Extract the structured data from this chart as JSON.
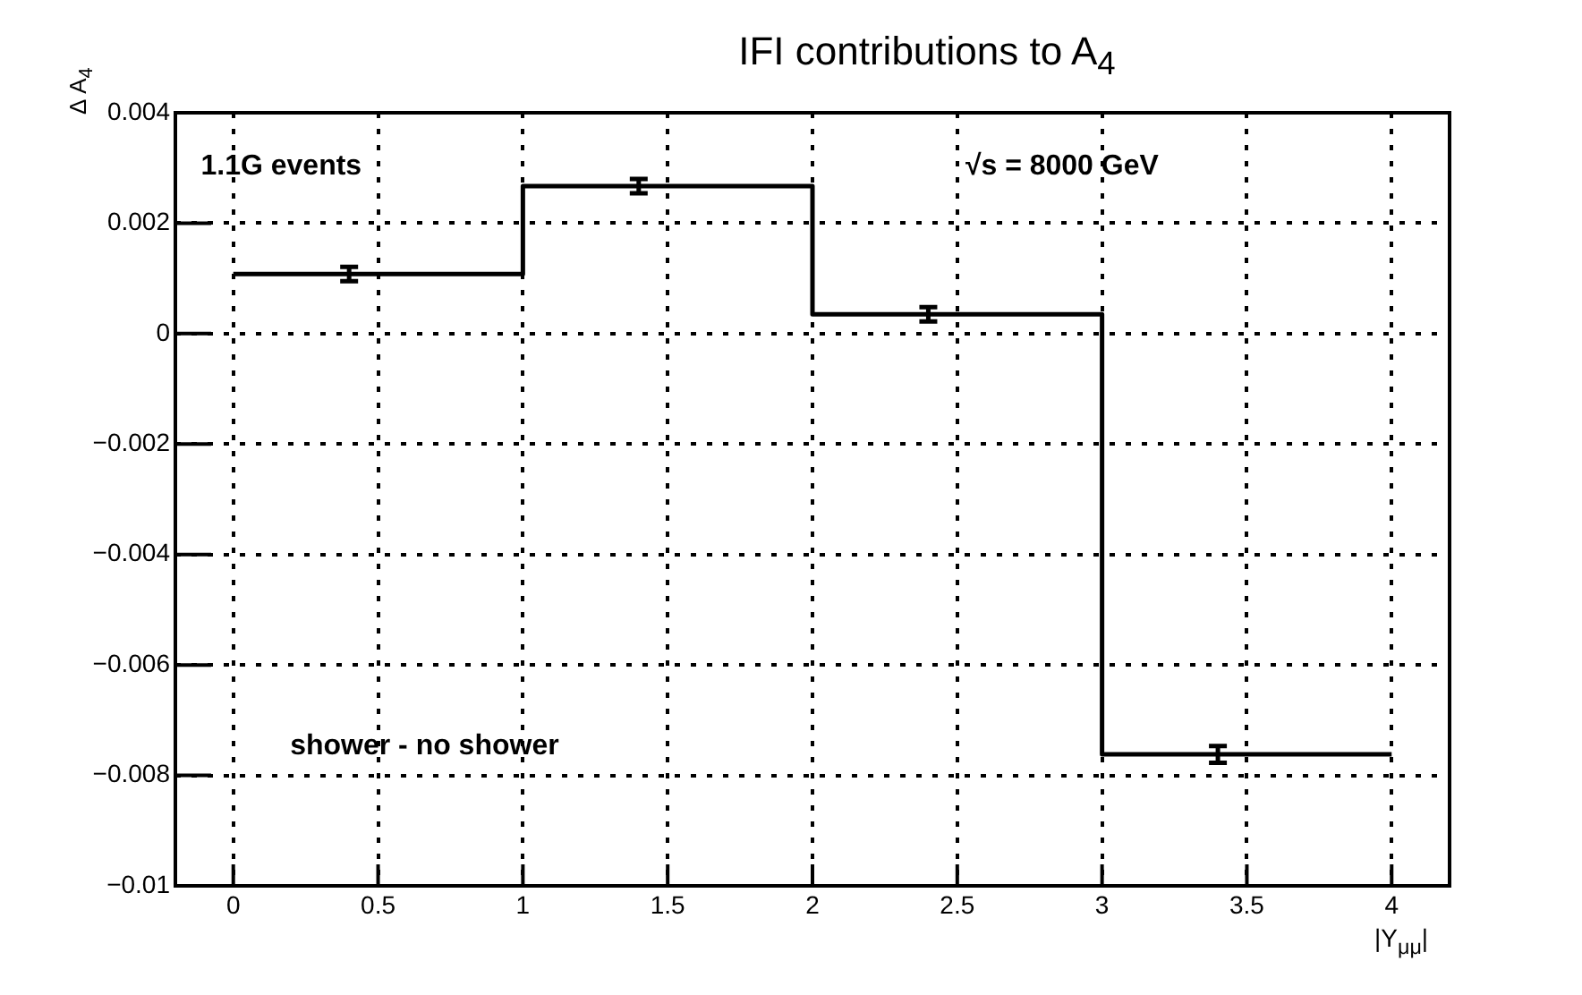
{
  "chart_data": {
    "type": "histogram",
    "title": "IFI contributions to A$_{4}$",
    "xlabel": "|Y$_{μμ}$|",
    "ylabel": "Δ A$_{4}$",
    "annotations": [
      "1.1G events",
      "√s = 8000 GeV",
      "shower - no shower"
    ],
    "series": [
      {
        "bins": [
          0,
          1,
          2,
          3,
          4
        ],
        "values": [
          0.00108,
          0.00267,
          0.00035,
          -0.00762
        ],
        "color": "#000000"
      },
      {
        "type": "scatter",
        "x": [
          0.4,
          1.4,
          2.4,
          3.4
        ],
        "values": [
          0.00108,
          0.00267,
          0.00035,
          -0.00762
        ],
        "errors": [
          0.00013,
          0.00013,
          0.00013,
          0.00015
        ],
        "color": "#000000"
      }
    ],
    "xlim": [
      -0.2,
      4.2
    ],
    "xticks": [
      0,
      0.5,
      1,
      1.5,
      2,
      2.5,
      3,
      3.5,
      4
    ],
    "ylim": [
      -0.01,
      0.004
    ],
    "yticks": [
      {
        "value": -0.01,
        "label": "−0.01"
      },
      {
        "value": -0.008,
        "label": "−0.008"
      },
      {
        "value": -0.006,
        "label": "−0.006"
      },
      {
        "value": -0.004,
        "label": "−0.004"
      },
      {
        "value": -0.002,
        "label": "−0.002"
      },
      0,
      0.002,
      0.004
    ],
    "grid": true
  }
}
